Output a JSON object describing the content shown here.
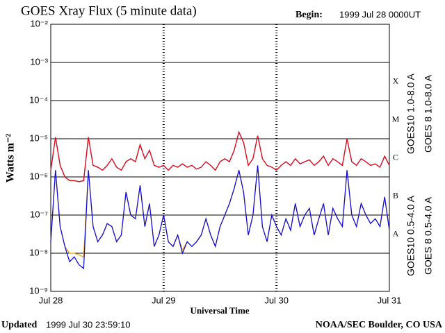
{
  "chart_data": {
    "type": "line",
    "title": "GOES Xray Flux (5 minute data)",
    "begin_label": "Begin:",
    "begin": "1999 Jul 28 0000UT",
    "ylabel": "Watts m⁻²",
    "xlabel": "Universal Time",
    "updated_label": "Updated",
    "updated": "1999 Jul 30 23:59:10",
    "credit": "NOAA/SEC Boulder, CO USA",
    "log_y": true,
    "grid": true,
    "ylim": [
      1e-09,
      0.01
    ],
    "yticks": [
      {
        "value": 1e-09,
        "label": "10⁻⁹"
      },
      {
        "value": 1e-08,
        "label": "10⁻⁸"
      },
      {
        "value": 1e-07,
        "label": "10⁻⁷"
      },
      {
        "value": 1e-06,
        "label": "10⁻⁶"
      },
      {
        "value": 1e-05,
        "label": "10⁻⁵"
      },
      {
        "value": 0.0001,
        "label": "10⁻⁴"
      },
      {
        "value": 0.001,
        "label": "10⁻³"
      },
      {
        "value": 0.01,
        "label": "10⁻²"
      }
    ],
    "class_ticks": [
      {
        "value": 1e-08,
        "label": "A"
      },
      {
        "value": 1e-07,
        "label": "B"
      },
      {
        "value": 1e-06,
        "label": "C"
      },
      {
        "value": 1e-05,
        "label": "M"
      },
      {
        "value": 0.0001,
        "label": "X"
      }
    ],
    "xlim": [
      0,
      72
    ],
    "xticks": [
      {
        "value": 0,
        "label": "Jul 28"
      },
      {
        "value": 24,
        "label": "Jul 29"
      },
      {
        "value": 48,
        "label": "Jul 30"
      },
      {
        "value": 72,
        "label": "Jul 31"
      }
    ],
    "x": [
      0,
      1,
      2,
      3,
      4,
      5,
      6,
      7,
      8,
      9,
      10,
      11,
      12,
      13,
      14,
      15,
      16,
      17,
      18,
      19,
      20,
      21,
      22,
      23,
      24,
      25,
      26,
      27,
      28,
      29,
      30,
      31,
      32,
      33,
      34,
      35,
      36,
      37,
      38,
      39,
      40,
      41,
      42,
      43,
      44,
      45,
      46,
      47,
      48,
      49,
      50,
      51,
      52,
      53,
      54,
      55,
      56,
      57,
      58,
      59,
      60,
      61,
      62,
      63,
      64,
      65,
      66,
      67,
      68,
      69,
      70,
      71,
      72
    ],
    "series": [
      {
        "name": "GOES10 1.0-8.0 A",
        "color": "#8a2be2",
        "values": [
          1.5e-06,
          1.1e-05,
          2e-06,
          1e-06,
          8e-07,
          8e-07,
          7.5e-07,
          8e-07,
          1.1e-05,
          2e-06,
          1.8e-06,
          1.5e-06,
          2e-06,
          3e-06,
          1.8e-06,
          1.5e-06,
          2.5e-06,
          3e-06,
          2.5e-06,
          7e-06,
          3e-06,
          5e-06,
          2e-06,
          1.8e-06,
          2e-06,
          1.5e-06,
          2e-06,
          1.8e-06,
          2.2e-06,
          1.8e-06,
          2e-06,
          1.6e-06,
          1.8e-06,
          2.5e-06,
          2e-06,
          1.5e-06,
          2.5e-06,
          3e-06,
          2.5e-06,
          5e-06,
          1.5e-05,
          8e-06,
          2e-06,
          3e-06,
          1.2e-05,
          3e-06,
          2e-06,
          1.8e-06,
          1.5e-06,
          2e-06,
          2.5e-06,
          2e-06,
          3e-06,
          2.2e-06,
          2.5e-06,
          2.8e-06,
          2e-06,
          2.5e-06,
          3.5e-06,
          2e-06,
          3e-06,
          2.5e-06,
          2e-06,
          1e-05,
          2.5e-06,
          2e-06,
          3e-06,
          2.5e-06,
          2e-06,
          2.2e-06,
          1.8e-06,
          3.5e-06,
          2e-06
        ]
      },
      {
        "name": "GOES 8 1.0-8.0 A",
        "color": "#e01010",
        "values": [
          1.5e-06,
          1.1e-05,
          2e-06,
          1e-06,
          8e-07,
          8e-07,
          7.5e-07,
          8e-07,
          1.1e-05,
          2e-06,
          1.8e-06,
          1.5e-06,
          2e-06,
          3e-06,
          1.8e-06,
          1.5e-06,
          2.5e-06,
          3e-06,
          2.5e-06,
          7e-06,
          3e-06,
          5e-06,
          2e-06,
          1.8e-06,
          2e-06,
          1.5e-06,
          2e-06,
          1.8e-06,
          2.2e-06,
          1.8e-06,
          2e-06,
          1.6e-06,
          1.8e-06,
          2.5e-06,
          2e-06,
          1.5e-06,
          2.5e-06,
          3e-06,
          2.5e-06,
          5e-06,
          1.5e-05,
          8e-06,
          2e-06,
          3e-06,
          1.2e-05,
          3e-06,
          2e-06,
          1.8e-06,
          1.5e-06,
          2e-06,
          2.5e-06,
          2e-06,
          3e-06,
          2.2e-06,
          2.5e-06,
          2.8e-06,
          2e-06,
          2.5e-06,
          3.5e-06,
          2e-06,
          3e-06,
          2.5e-06,
          2e-06,
          1e-05,
          2.5e-06,
          2e-06,
          3e-06,
          2.5e-06,
          2e-06,
          2.2e-06,
          1.8e-06,
          3.5e-06,
          2e-06
        ]
      },
      {
        "name": "GOES10 0.5-4.0 A",
        "color": "#f5a000",
        "values": [
          2e-08,
          1.5e-06,
          5e-08,
          1.5e-08,
          1e-08,
          1e-08,
          9e-09,
          8e-09,
          1.5e-06,
          5e-08,
          2e-08,
          3e-08,
          6e-08,
          5e-08,
          2e-08,
          3e-08,
          4e-07,
          1e-07,
          8e-08,
          6e-07,
          5e-08,
          2e-07,
          1.5e-08,
          3e-08,
          1e-07,
          2e-08,
          1.5e-08,
          3e-08,
          1.2e-08,
          2e-08,
          1.5e-08,
          2e-08,
          3e-08,
          8e-08,
          3e-08,
          1.5e-08,
          5e-08,
          1e-07,
          2e-07,
          5e-07,
          1.5e-06,
          4e-07,
          3e-08,
          1e-07,
          2e-06,
          5e-08,
          2e-08,
          1e-07,
          5e-08,
          3e-08,
          8e-08,
          4e-08,
          2e-07,
          5e-08,
          1e-07,
          1.5e-07,
          3e-08,
          8e-08,
          2e-07,
          3e-08,
          1.5e-07,
          8e-08,
          5e-08,
          1.5e-06,
          1e-07,
          5e-08,
          2e-07,
          1e-07,
          6e-08,
          8e-08,
          5e-08,
          3e-07,
          4e-08
        ]
      },
      {
        "name": "GOES 8 0.5-4.0 A",
        "color": "#1010e0",
        "values": [
          2e-08,
          1.5e-06,
          5e-08,
          1.5e-08,
          6e-09,
          8e-09,
          5e-09,
          4e-09,
          1.5e-06,
          5e-08,
          2e-08,
          3e-08,
          6e-08,
          5e-08,
          2e-08,
          3e-08,
          4e-07,
          1e-07,
          8e-08,
          6e-07,
          5e-08,
          2e-07,
          1.5e-08,
          3e-08,
          1e-07,
          2e-08,
          1.5e-08,
          3e-08,
          1e-08,
          2e-08,
          1.5e-08,
          2e-08,
          3e-08,
          8e-08,
          3e-08,
          1.5e-08,
          5e-08,
          1e-07,
          2e-07,
          5e-07,
          1.5e-06,
          4e-07,
          3e-08,
          1e-07,
          2e-06,
          5e-08,
          2e-08,
          1e-07,
          5e-08,
          3e-08,
          8e-08,
          4e-08,
          2e-07,
          5e-08,
          1e-07,
          1.5e-07,
          3e-08,
          8e-08,
          2e-07,
          3e-08,
          1.5e-07,
          8e-08,
          5e-08,
          1.5e-06,
          1e-07,
          5e-08,
          2e-07,
          1e-07,
          6e-08,
          8e-08,
          5e-08,
          3e-07,
          4e-08
        ]
      }
    ]
  }
}
